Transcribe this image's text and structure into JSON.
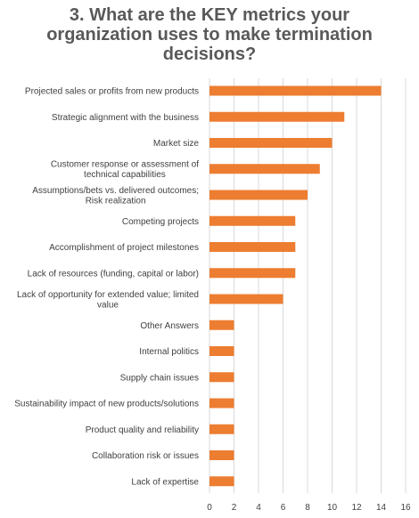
{
  "chart_data": {
    "type": "bar",
    "orientation": "horizontal",
    "title_lines": [
      "3. What are the KEY metrics your",
      "organization uses to make termination",
      "decisions?"
    ],
    "categories": [
      [
        "Projected sales or profits from new products"
      ],
      [
        "Strategic alignment with the business"
      ],
      [
        "Market size"
      ],
      [
        "Customer response or assessment of",
        "technical capabilities"
      ],
      [
        "Assumptions/bets vs. delivered outcomes;",
        "Risk realization"
      ],
      [
        "Competing projects"
      ],
      [
        "Accomplishment of project milestones"
      ],
      [
        "Lack of resources (funding, capital or labor)"
      ],
      [
        "Lack of opportunity for extended value; limited",
        "value"
      ],
      [
        "Other Answers"
      ],
      [
        "Internal politics"
      ],
      [
        "Supply chain issues"
      ],
      [
        "Sustainability impact of new products/solutions"
      ],
      [
        "Product quality and reliability"
      ],
      [
        "Collaboration risk or issues"
      ],
      [
        "Lack of expertise"
      ]
    ],
    "values": [
      14,
      11,
      10,
      9,
      8,
      7,
      7,
      7,
      6,
      2,
      2,
      2,
      2,
      2,
      2,
      2
    ],
    "xlim": [
      0,
      16
    ],
    "xticks": [
      0,
      2,
      4,
      6,
      8,
      10,
      12,
      14,
      16
    ],
    "grid": "vertical",
    "bar_color": "#ED7D31",
    "grid_color": "#D9D9D9"
  }
}
